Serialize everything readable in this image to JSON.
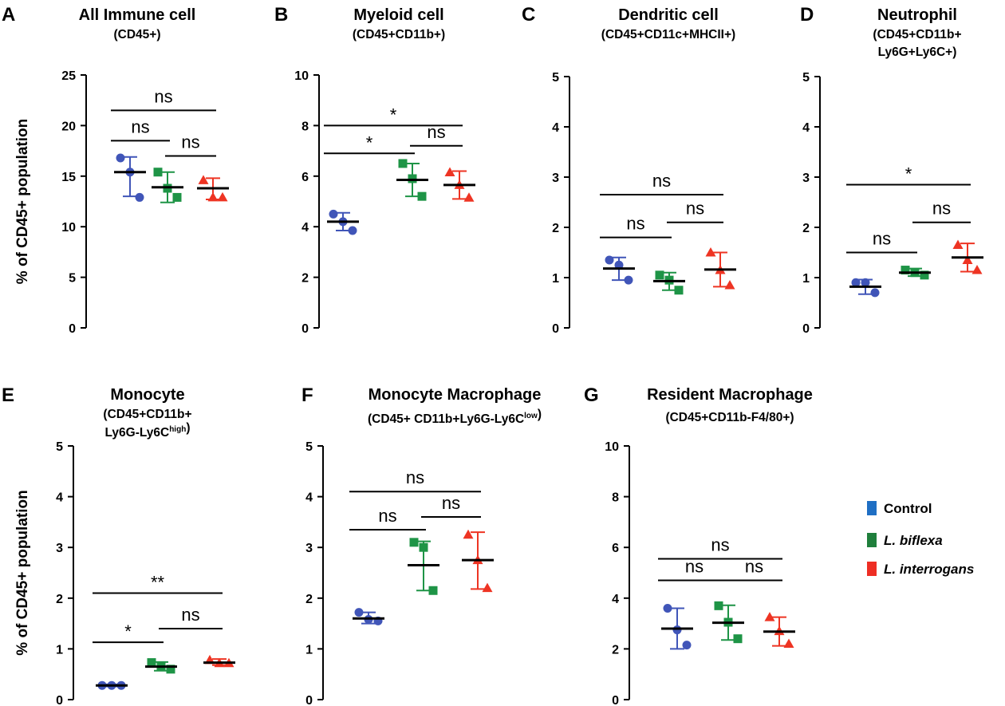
{
  "colors": {
    "Control": "#4055b8",
    "L. biflexa": "#1e9446",
    "L. interrogans": "#ee3423",
    "mean_line": "#000000"
  },
  "legend": {
    "items": [
      {
        "label": "Control",
        "color": "#1f6fc4",
        "italic": false
      },
      {
        "label": "L. biflexa",
        "color": "#1f7f3c",
        "italic": true
      },
      {
        "label": "L. interrogans",
        "color": "#ee2e24",
        "italic": true
      }
    ]
  },
  "chart_data": [
    {
      "id": "A",
      "type": "scatter",
      "title": "All Immune cell",
      "subtitle": [
        "(CD45+)"
      ],
      "ylabel": "% of CD45+ population",
      "ylim": [
        0,
        25
      ],
      "yticks": [
        0,
        5,
        10,
        15,
        20,
        25
      ],
      "groups": [
        "Control",
        "L. biflexa",
        "L. interrogans"
      ],
      "points": [
        [
          16.8,
          15.4,
          12.9
        ],
        [
          15.4,
          13.8,
          12.9
        ],
        [
          14.6,
          12.9,
          12.9
        ]
      ],
      "mean": [
        15.4,
        13.9,
        13.8
      ],
      "sd_low": [
        13.0,
        12.4,
        12.7
      ],
      "sd_high": [
        16.9,
        15.4,
        14.8
      ],
      "comparisons": [
        {
          "g1": 0,
          "g2": 1,
          "label": "ns",
          "y": 18.5
        },
        {
          "g1": 1,
          "g2": 2,
          "label": "ns",
          "y": 17.0
        },
        {
          "g1": 0,
          "g2": 2,
          "label": "ns",
          "y": 21.5
        }
      ]
    },
    {
      "id": "B",
      "type": "scatter",
      "title": "Myeloid cell",
      "subtitle": [
        "(CD45+CD11b+)"
      ],
      "ylabel": "",
      "ylim": [
        0,
        10
      ],
      "yticks": [
        0,
        2,
        4,
        6,
        8,
        10
      ],
      "groups": [
        "Control",
        "L. biflexa",
        "L. interrogans"
      ],
      "points": [
        [
          4.5,
          4.2,
          3.85
        ],
        [
          6.5,
          5.9,
          5.2
        ],
        [
          6.15,
          5.65,
          5.15
        ]
      ],
      "mean": [
        4.2,
        5.85,
        5.65
      ],
      "sd_low": [
        3.85,
        5.2,
        5.1
      ],
      "sd_high": [
        4.55,
        6.5,
        6.2
      ],
      "comparisons": [
        {
          "g1": 0,
          "g2": 1,
          "label": "*",
          "y": 6.9
        },
        {
          "g1": 1,
          "g2": 2,
          "label": "ns",
          "y": 7.2
        },
        {
          "g1": 0,
          "g2": 2,
          "label": "*",
          "y": 8.0
        }
      ]
    },
    {
      "id": "C",
      "type": "scatter",
      "title": "Dendritic cell",
      "subtitle": [
        "(CD45+CD11c+MHCII+)"
      ],
      "ylabel": "",
      "ylim": [
        0,
        5
      ],
      "yticks": [
        0,
        1,
        2,
        3,
        4,
        5
      ],
      "groups": [
        "Control",
        "L. biflexa",
        "L. interrogans"
      ],
      "points": [
        [
          1.35,
          1.25,
          0.95
        ],
        [
          1.05,
          0.95,
          0.75
        ],
        [
          1.5,
          1.15,
          0.85
        ]
      ],
      "mean": [
        1.18,
        0.93,
        1.16
      ],
      "sd_low": [
        0.95,
        0.75,
        0.82
      ],
      "sd_high": [
        1.4,
        1.1,
        1.5
      ],
      "comparisons": [
        {
          "g1": 0,
          "g2": 1,
          "label": "ns",
          "y": 1.8
        },
        {
          "g1": 1,
          "g2": 2,
          "label": "ns",
          "y": 2.1
        },
        {
          "g1": 0,
          "g2": 2,
          "label": "ns",
          "y": 2.65
        }
      ]
    },
    {
      "id": "D",
      "type": "scatter",
      "title": "Neutrophil",
      "subtitle": [
        "(CD45+CD11b+",
        "Ly6G+Ly6C+)"
      ],
      "ylabel": "",
      "ylim": [
        0,
        5
      ],
      "yticks": [
        0,
        1,
        2,
        3,
        4,
        5
      ],
      "groups": [
        "Control",
        "L. biflexa",
        "L. interrogans"
      ],
      "points": [
        [
          0.9,
          0.9,
          0.7
        ],
        [
          1.15,
          1.1,
          1.05
        ],
        [
          1.65,
          1.35,
          1.15
        ]
      ],
      "mean": [
        0.82,
        1.1,
        1.4
      ],
      "sd_low": [
        0.67,
        1.03,
        1.12
      ],
      "sd_high": [
        0.96,
        1.18,
        1.68
      ],
      "comparisons": [
        {
          "g1": 0,
          "g2": 1,
          "label": "ns",
          "y": 1.5
        },
        {
          "g1": 1,
          "g2": 2,
          "label": "ns",
          "y": 2.1
        },
        {
          "g1": 0,
          "g2": 2,
          "label": "*",
          "y": 2.85
        }
      ]
    },
    {
      "id": "E",
      "type": "scatter",
      "title": "Monocyte",
      "subtitle": [
        "(CD45+CD11b+",
        "Ly6G-Ly6Chigh)"
      ],
      "subtitle_rich": [
        {
          "text": "Ly6G-Ly6C",
          "sup": "high"
        },
        {
          "text": ")",
          "sup": ""
        }
      ],
      "ylabel": "% of CD45+ population",
      "ylim": [
        0,
        5
      ],
      "yticks": [
        0,
        1,
        2,
        3,
        4,
        5
      ],
      "groups": [
        "Control",
        "L. biflexa",
        "L. interrogans"
      ],
      "points": [
        [
          0.28,
          0.28,
          0.28
        ],
        [
          0.73,
          0.66,
          0.6
        ],
        [
          0.78,
          0.72,
          0.72
        ]
      ],
      "mean": [
        0.28,
        0.65,
        0.73
      ],
      "sd_low": [
        0.26,
        0.57,
        0.68
      ],
      "sd_high": [
        0.3,
        0.74,
        0.8
      ],
      "comparisons": [
        {
          "g1": 0,
          "g2": 1,
          "label": "*",
          "y": 1.13
        },
        {
          "g1": 1,
          "g2": 2,
          "label": "ns",
          "y": 1.4
        },
        {
          "g1": 0,
          "g2": 2,
          "label": "**",
          "y": 2.1
        }
      ]
    },
    {
      "id": "F",
      "type": "scatter",
      "title": "Monocyte Macrophage",
      "subtitle": [
        "(CD45+ CD11b+Ly6G-Ly6Clow)"
      ],
      "subtitle_rich": [
        {
          "text": "(CD45+ CD11b+Ly6G-Ly6C",
          "sup": "low"
        },
        {
          "text": ")",
          "sup": ""
        }
      ],
      "ylabel": "",
      "ylim": [
        0,
        5
      ],
      "yticks": [
        0,
        1,
        2,
        3,
        4,
        5
      ],
      "groups": [
        "Control",
        "L. biflexa",
        "L. interrogans"
      ],
      "points": [
        [
          1.72,
          1.58,
          1.55
        ],
        [
          3.1,
          3.0,
          2.15
        ],
        [
          3.25,
          2.75,
          2.2
        ]
      ],
      "mean": [
        1.6,
        2.65,
        2.75
      ],
      "sd_low": [
        1.5,
        2.15,
        2.18
      ],
      "sd_high": [
        1.72,
        3.12,
        3.3
      ],
      "comparisons": [
        {
          "g1": 0,
          "g2": 1,
          "label": "ns",
          "y": 3.35
        },
        {
          "g1": 1,
          "g2": 2,
          "label": "ns",
          "y": 3.6
        },
        {
          "g1": 0,
          "g2": 2,
          "label": "ns",
          "y": 4.1
        }
      ]
    },
    {
      "id": "G",
      "type": "scatter",
      "title": "Resident Macrophage",
      "subtitle": [
        "(CD45+CD11b-F4/80+)"
      ],
      "ylabel": "",
      "ylim": [
        0,
        10
      ],
      "yticks": [
        0,
        2,
        4,
        6,
        8,
        10
      ],
      "groups": [
        "Control",
        "L. biflexa",
        "L. interrogans"
      ],
      "points": [
        [
          3.6,
          2.75,
          2.15
        ],
        [
          3.7,
          3.05,
          2.4
        ],
        [
          3.25,
          2.7,
          2.2
        ]
      ],
      "mean": [
        2.8,
        3.03,
        2.68
      ],
      "sd_low": [
        2.0,
        2.35,
        2.12
      ],
      "sd_high": [
        3.6,
        3.72,
        3.25
      ],
      "comparisons": [
        {
          "g1": 0,
          "g2": 1,
          "label": "ns",
          "y": 4.7
        },
        {
          "g1": 1,
          "g2": 2,
          "label": "ns",
          "y": 4.7
        },
        {
          "g1": 0,
          "g2": 2,
          "label": "ns",
          "y": 5.55
        }
      ]
    }
  ]
}
